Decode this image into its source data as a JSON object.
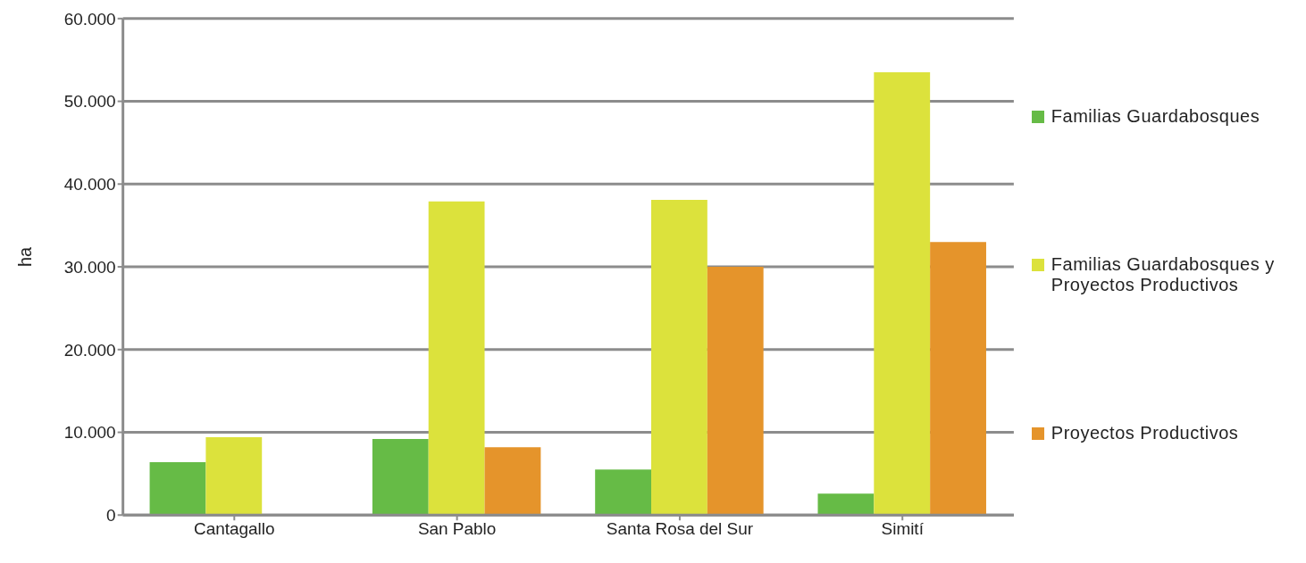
{
  "chart_data": {
    "type": "bar",
    "ylabel": "ha",
    "categories": [
      "Cantagallo",
      "San Pablo",
      "Santa Rosa del Sur",
      "Simití"
    ],
    "series": [
      {
        "name": "Familias Guardabosques",
        "color": "#66bb46",
        "values": [
          6400,
          9200,
          5500,
          2600
        ]
      },
      {
        "name": "Familias Guardabosques y Proyectos Productivos",
        "color": "#dce23c",
        "values": [
          9400,
          37900,
          38100,
          53500
        ]
      },
      {
        "name": "Proyectos Productivos",
        "color": "#e5942b",
        "values": [
          null,
          8200,
          30000,
          33000
        ]
      }
    ],
    "ylim": [
      0,
      60000
    ],
    "yticks": [
      0,
      {
        "value": 10000,
        "label": "10.000"
      },
      {
        "value": 20000,
        "label": "20.000"
      },
      {
        "value": 30000,
        "label": "30.000"
      },
      {
        "value": 40000,
        "label": "40.000"
      },
      {
        "value": 50000,
        "label": "50.000"
      },
      {
        "value": 60000,
        "label": "60.000"
      }
    ],
    "grid": "y",
    "legend": "right"
  }
}
